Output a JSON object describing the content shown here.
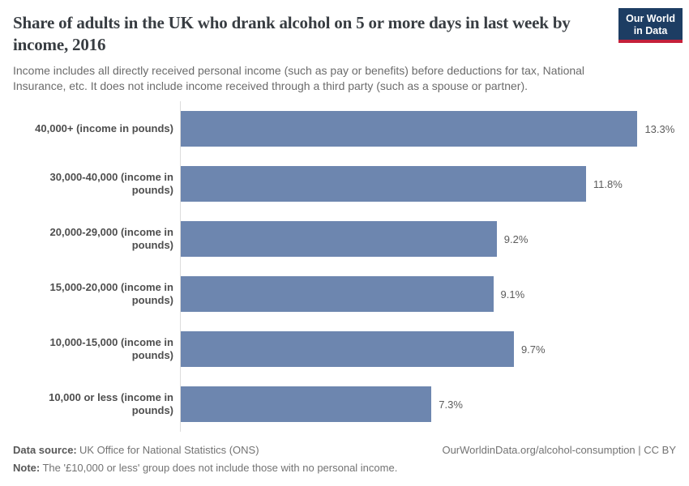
{
  "header": {
    "title": "Share of adults in the UK who drank alcohol on 5 or more days in last week by income, 2016",
    "subtitle": "Income includes all directly received personal income (such as pay or benefits) before deductions for tax, National Insurance, etc. It does not include income received through a third party (such as a spouse or partner).",
    "logo": {
      "line1": "Our World",
      "line2": "in Data"
    }
  },
  "chart_data": {
    "type": "bar",
    "orientation": "horizontal",
    "title": "Share of adults in the UK who drank alcohol on 5 or more days in last week by income, 2016",
    "categories": [
      "40,000+ (income in pounds)",
      "30,000-40,000 (income in pounds)",
      "20,000-29,000 (income in pounds)",
      "15,000-20,000 (income in pounds)",
      "10,000-15,000 (income in pounds)",
      "10,000 or less (income in pounds)"
    ],
    "values": [
      13.3,
      11.8,
      9.2,
      9.1,
      9.7,
      7.3
    ],
    "value_labels": [
      "13.3%",
      "11.8%",
      "9.2%",
      "9.1%",
      "9.7%",
      "7.3%"
    ],
    "unit": "%",
    "xlabel": "",
    "ylabel": "",
    "xlim": [
      0,
      14.8
    ],
    "grid": false,
    "legend": false,
    "bar_color": "#6d86af"
  },
  "footer": {
    "source_label": "Data source:",
    "source_text": "UK Office for National Statistics (ONS)",
    "link": "OurWorldinData.org/alcohol-consumption | CC BY",
    "note_label": "Note:",
    "note_text": "The '£10,000 or less' group does not include those with no personal income."
  },
  "colors": {
    "bar": "#6d86af",
    "title": "#383d42",
    "axis_line": "#dcdcdc",
    "logo_background": "#1d3d63",
    "logo_accent": "#c5203a"
  }
}
